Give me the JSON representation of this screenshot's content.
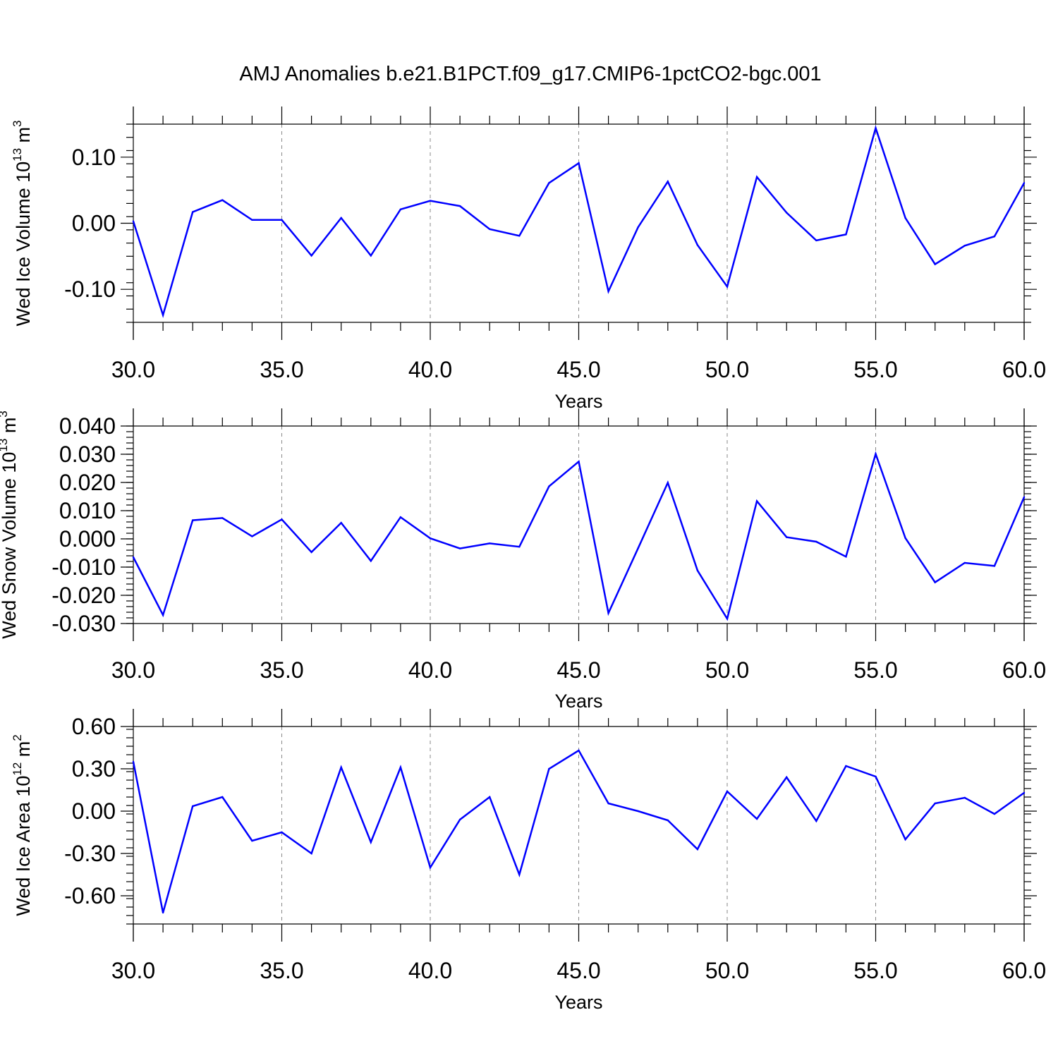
{
  "figure": {
    "title": "AMJ Anomalies b.e21.B1PCT.f09_g17.CMIP6-1pctCO2-bgc.001"
  },
  "colors": {
    "line": "#0000ff",
    "axis": "#000000",
    "grid": "#888888",
    "background": "#ffffff"
  },
  "chart_data": [
    {
      "type": "line",
      "xlabel": "Years",
      "ylabel": {
        "text": "Wed Ice Volume 10",
        "exp": "13",
        "unit": "m",
        "unit_exp": "3"
      },
      "xlim": [
        30,
        60
      ],
      "ylim": [
        -0.15,
        0.15
      ],
      "xticks": [
        30,
        35,
        40,
        45,
        50,
        55,
        60
      ],
      "xtick_labels": [
        "30.0",
        "35.0",
        "40.0",
        "45.0",
        "50.0",
        "55.0",
        "60.0"
      ],
      "yticks": [
        -0.1,
        0.0,
        0.1
      ],
      "ytick_labels": [
        "-0.10",
        "0.00",
        "0.10"
      ],
      "yminor_step": 0.02,
      "grid": "vertical dashed at major x ticks",
      "x": [
        30,
        31,
        32,
        33,
        34,
        35,
        36,
        37,
        38,
        39,
        40,
        41,
        42,
        43,
        44,
        45,
        46,
        47,
        48,
        49,
        50,
        51,
        52,
        53,
        54,
        55,
        56,
        57,
        58,
        59,
        60
      ],
      "y": [
        0.003,
        -0.139,
        0.017,
        0.035,
        0.005,
        0.005,
        -0.049,
        0.008,
        -0.049,
        0.021,
        0.034,
        0.026,
        -0.009,
        -0.019,
        0.061,
        0.091,
        -0.103,
        -0.006,
        0.063,
        -0.033,
        -0.096,
        0.07,
        0.016,
        -0.026,
        -0.017,
        0.144,
        0.008,
        -0.062,
        -0.034,
        -0.02,
        0.061
      ]
    },
    {
      "type": "line",
      "xlabel": "Years",
      "ylabel": {
        "text": "Wed Snow Volume 10",
        "exp": "13",
        "unit": "m",
        "unit_exp": "3"
      },
      "xlim": [
        30,
        60
      ],
      "ylim": [
        -0.03,
        0.04
      ],
      "xticks": [
        30,
        35,
        40,
        45,
        50,
        55,
        60
      ],
      "xtick_labels": [
        "30.0",
        "35.0",
        "40.0",
        "45.0",
        "50.0",
        "55.0",
        "60.0"
      ],
      "yticks": [
        -0.03,
        -0.02,
        -0.01,
        0.0,
        0.01,
        0.02,
        0.03,
        0.04
      ],
      "ytick_labels": [
        "-0.030",
        "-0.020",
        "-0.010",
        "0.000",
        "0.010",
        "0.020",
        "0.030",
        "0.040"
      ],
      "yminor_step": 0.002,
      "grid": "vertical dashed at major x ticks",
      "x": [
        30,
        31,
        32,
        33,
        34,
        35,
        36,
        37,
        38,
        39,
        40,
        41,
        42,
        43,
        44,
        45,
        46,
        47,
        48,
        49,
        50,
        51,
        52,
        53,
        54,
        55,
        56,
        57,
        58,
        59,
        60
      ],
      "y": [
        -0.0065,
        -0.027,
        0.0066,
        0.0074,
        0.0009,
        0.0069,
        -0.0047,
        0.0057,
        -0.0078,
        0.0077,
        0.0002,
        -0.0034,
        -0.0016,
        -0.0028,
        0.0186,
        0.0274,
        -0.0263,
        -0.0033,
        0.0199,
        -0.0112,
        -0.0283,
        0.0134,
        0.0006,
        -0.001,
        -0.0063,
        0.0301,
        0.0003,
        -0.0154,
        -0.0085,
        -0.0096,
        0.0148
      ]
    },
    {
      "type": "line",
      "xlabel": "Years",
      "ylabel": {
        "text": "Wed Ice Area 10",
        "exp": "12",
        "unit": "m",
        "unit_exp": "2"
      },
      "xlim": [
        30,
        60
      ],
      "ylim": [
        -0.8,
        0.6
      ],
      "xticks": [
        30,
        35,
        40,
        45,
        50,
        55,
        60
      ],
      "xtick_labels": [
        "30.0",
        "35.0",
        "40.0",
        "45.0",
        "50.0",
        "55.0",
        "60.0"
      ],
      "yticks": [
        -0.6,
        -0.3,
        0.0,
        0.3,
        0.6
      ],
      "ytick_labels": [
        "-0.60",
        "-0.30",
        "0.00",
        "0.30",
        "0.60"
      ],
      "yminor_step": 0.06,
      "grid": "vertical dashed at major x ticks",
      "x": [
        30,
        31,
        32,
        33,
        34,
        35,
        36,
        37,
        38,
        39,
        40,
        41,
        42,
        43,
        44,
        45,
        46,
        47,
        48,
        49,
        50,
        51,
        52,
        53,
        54,
        55,
        56,
        57,
        58,
        59,
        60
      ],
      "y": [
        0.35,
        -0.72,
        0.035,
        0.1,
        -0.21,
        -0.15,
        -0.3,
        0.31,
        -0.22,
        0.31,
        -0.4,
        -0.06,
        0.1,
        -0.45,
        0.3,
        0.43,
        0.055,
        0.0,
        -0.065,
        -0.27,
        0.14,
        -0.055,
        0.24,
        -0.07,
        0.32,
        0.245,
        -0.2,
        0.055,
        0.095,
        -0.02,
        0.13
      ]
    }
  ]
}
